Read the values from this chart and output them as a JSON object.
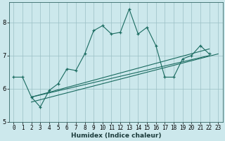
{
  "xlabel": "Humidex (Indice chaleur)",
  "background_color": "#cce8ec",
  "grid_color": "#9bbfc4",
  "line_color": "#1a6b60",
  "xlim": [
    -0.5,
    23.5
  ],
  "ylim": [
    5.0,
    8.6
  ],
  "yticks": [
    5,
    6,
    7,
    8
  ],
  "xticks": [
    0,
    1,
    2,
    3,
    4,
    5,
    6,
    7,
    8,
    9,
    10,
    11,
    12,
    13,
    14,
    15,
    16,
    17,
    18,
    19,
    20,
    21,
    22,
    23
  ],
  "series1_x": [
    0,
    1,
    2,
    3,
    4,
    5,
    6,
    7,
    8,
    9,
    10,
    11,
    12,
    13,
    14,
    15,
    16,
    17,
    18,
    19,
    20,
    21,
    22
  ],
  "series1_y": [
    6.35,
    6.35,
    5.75,
    5.45,
    5.95,
    6.15,
    6.6,
    6.55,
    7.05,
    7.75,
    7.9,
    7.65,
    7.7,
    8.4,
    7.65,
    7.85,
    7.3,
    6.35,
    6.35,
    6.9,
    7.0,
    7.3,
    7.05
  ],
  "line2_x": [
    2,
    22
  ],
  "line2_y": [
    5.75,
    7.0
  ],
  "line3_x": [
    2,
    23
  ],
  "line3_y": [
    5.6,
    7.05
  ],
  "line4_x": [
    2,
    22
  ],
  "line4_y": [
    5.75,
    7.2
  ],
  "spine_color": "#336666",
  "tick_fontsize": 5.5,
  "xlabel_fontsize": 6.5
}
